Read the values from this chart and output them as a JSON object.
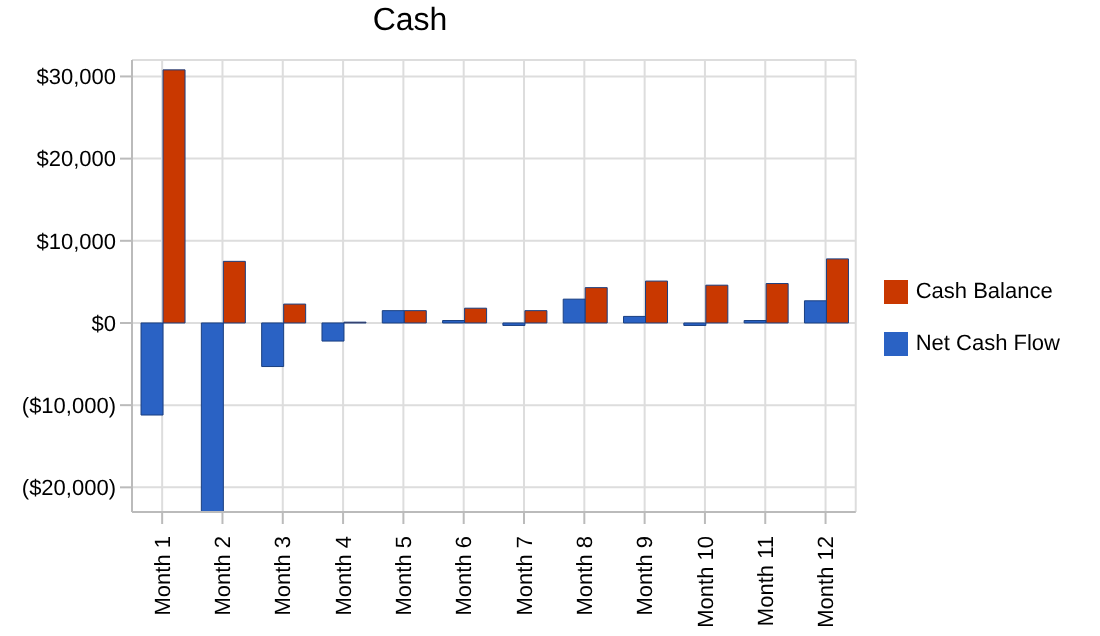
{
  "chart_data": {
    "type": "bar",
    "title": "Cash",
    "categories": [
      "Month 1",
      "Month 2",
      "Month 3",
      "Month 4",
      "Month 5",
      "Month 6",
      "Month 7",
      "Month 8",
      "Month 9",
      "Month 10",
      "Month 11",
      "Month 12"
    ],
    "series": [
      {
        "name": "Net Cash Flow",
        "color": "#2a62c4",
        "values": [
          -11200,
          -23000,
          -5300,
          -2200,
          1500,
          300,
          -300,
          2900,
          800,
          -300,
          300,
          2700
        ]
      },
      {
        "name": "Cash Balance",
        "color": "#c93800",
        "values": [
          30800,
          7500,
          2300,
          100,
          1500,
          1800,
          1500,
          4300,
          5100,
          4600,
          4800,
          7800
        ]
      }
    ],
    "ylim": [
      -23000,
      32000
    ],
    "yticks": [
      {
        "value": -20000,
        "label": "($20,000)"
      },
      {
        "value": -10000,
        "label": "($10,000)"
      },
      {
        "value": 0,
        "label": "$0"
      },
      {
        "value": 10000,
        "label": "$10,000"
      },
      {
        "value": 20000,
        "label": "$20,000"
      },
      {
        "value": 30000,
        "label": "$30,000"
      }
    ],
    "grid": true,
    "legend": "right"
  }
}
